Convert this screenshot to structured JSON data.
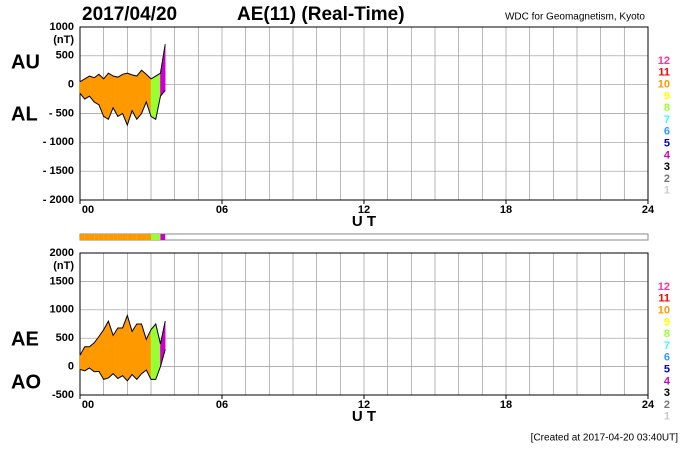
{
  "title_date": "2017/04/20",
  "title": "AE(11) (Real-Time)",
  "source": "WDC for Geomagnetism, Kyoto",
  "footer": "[Created at 2017-04-20 03:40UT]",
  "chart_data": [
    {
      "type": "area-band",
      "ylabel": "(nT)",
      "xlabel": "U T",
      "labels": [
        "AU",
        "AL"
      ],
      "x": [
        0,
        0.2,
        0.4,
        0.6,
        0.8,
        1.0,
        1.2,
        1.4,
        1.6,
        1.8,
        2.0,
        2.2,
        2.4,
        2.6,
        2.8,
        3.0,
        3.2,
        3.4,
        3.6
      ],
      "series": [
        {
          "name": "AU",
          "color": "#000000",
          "values": [
            50,
            100,
            150,
            120,
            180,
            100,
            200,
            150,
            130,
            180,
            200,
            170,
            150,
            250,
            180,
            100,
            150,
            200,
            700
          ]
        },
        {
          "name": "AL",
          "color": "#000000",
          "values": [
            -150,
            -250,
            -200,
            -300,
            -350,
            -550,
            -600,
            -400,
            -550,
            -500,
            -700,
            -450,
            -600,
            -500,
            -300,
            -550,
            -600,
            -200,
            -100
          ]
        }
      ],
      "stations": [
        10,
        10,
        10,
        10,
        10,
        10,
        10,
        10,
        10,
        10,
        10,
        10,
        10,
        10,
        10,
        8,
        8,
        4,
        4
      ],
      "xlim": [
        0,
        24
      ],
      "xticks": [
        {
          "value": 0,
          "label": "00"
        },
        {
          "value": 6,
          "label": "06"
        },
        12,
        18,
        24
      ],
      "ylim": [
        -2000,
        1000
      ],
      "yticks": [
        1000,
        500,
        0,
        {
          "value": -500,
          "label": "- 500"
        },
        {
          "value": -1000,
          "label": "- 1000"
        },
        {
          "value": -1500,
          "label": "- 1500"
        },
        {
          "value": -2000,
          "label": "- 2000"
        }
      ],
      "grid": true,
      "legend": [
        {
          "label": "12",
          "color": "#ff3399"
        },
        {
          "label": "11",
          "color": "#ff0000"
        },
        {
          "label": "10",
          "color": "#ff9900"
        },
        {
          "label": "9",
          "color": "#ffff00"
        },
        {
          "label": "8",
          "color": "#99ff33"
        },
        {
          "label": "7",
          "color": "#33ffff"
        },
        {
          "label": "6",
          "color": "#3399ff"
        },
        {
          "label": "5",
          "color": "#0000cc"
        },
        {
          "label": "4",
          "color": "#cc00cc"
        },
        {
          "label": "3",
          "color": "#000000"
        },
        {
          "label": "2",
          "color": "#777777"
        },
        {
          "label": "1",
          "color": "#cccccc"
        }
      ]
    },
    {
      "type": "area-band",
      "ylabel": "(nT)",
      "xlabel": "U T",
      "labels": [
        "AE",
        "AO"
      ],
      "x": [
        0,
        0.2,
        0.4,
        0.6,
        0.8,
        1.0,
        1.2,
        1.4,
        1.6,
        1.8,
        2.0,
        2.2,
        2.4,
        2.6,
        2.8,
        3.0,
        3.2,
        3.4,
        3.6
      ],
      "series": [
        {
          "name": "AE",
          "color": "#000000",
          "values": [
            200,
            350,
            350,
            420,
            530,
            650,
            800,
            550,
            680,
            680,
            900,
            620,
            750,
            750,
            480,
            650,
            750,
            400,
            800
          ]
        },
        {
          "name": "AO",
          "color": "#000000",
          "values": [
            -50,
            -75,
            -25,
            -90,
            -85,
            -225,
            -200,
            -125,
            -210,
            -160,
            -250,
            -140,
            -225,
            -125,
            -60,
            -225,
            -225,
            0,
            300
          ]
        }
      ],
      "stations": [
        10,
        10,
        10,
        10,
        10,
        10,
        10,
        10,
        10,
        10,
        10,
        10,
        10,
        10,
        10,
        8,
        8,
        4,
        4
      ],
      "xlim": [
        0,
        24
      ],
      "xticks": [
        {
          "value": 0,
          "label": "00"
        },
        {
          "value": 6,
          "label": "06"
        },
        12,
        18,
        24
      ],
      "ylim": [
        -500,
        2000
      ],
      "yticks": [
        2000,
        1500,
        1000,
        500,
        0,
        -500
      ],
      "grid": true,
      "legend": [
        {
          "label": "12",
          "color": "#ff3399"
        },
        {
          "label": "11",
          "color": "#ff0000"
        },
        {
          "label": "10",
          "color": "#ff9900"
        },
        {
          "label": "9",
          "color": "#ffff00"
        },
        {
          "label": "8",
          "color": "#99ff33"
        },
        {
          "label": "7",
          "color": "#33ffff"
        },
        {
          "label": "6",
          "color": "#3399ff"
        },
        {
          "label": "5",
          "color": "#0000cc"
        },
        {
          "label": "4",
          "color": "#cc00cc"
        },
        {
          "label": "3",
          "color": "#000000"
        },
        {
          "label": "2",
          "color": "#777777"
        },
        {
          "label": "1",
          "color": "#cccccc"
        }
      ]
    }
  ]
}
